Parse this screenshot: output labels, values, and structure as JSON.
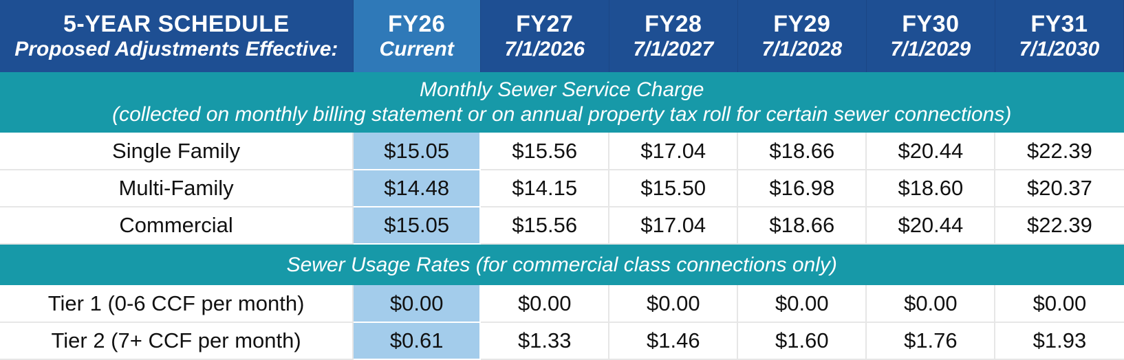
{
  "header": {
    "title": "5-YEAR SCHEDULE",
    "subtitle": "Proposed Adjustments Effective:",
    "columns": [
      {
        "year": "FY26",
        "date": "Current"
      },
      {
        "year": "FY27",
        "date": "7/1/2026"
      },
      {
        "year": "FY28",
        "date": "7/1/2027"
      },
      {
        "year": "FY29",
        "date": "7/1/2028"
      },
      {
        "year": "FY30",
        "date": "7/1/2029"
      },
      {
        "year": "FY31",
        "date": "7/1/2030"
      }
    ]
  },
  "sections": [
    {
      "title": "Monthly Sewer Service Charge",
      "note": "(collected on monthly billing statement or on annual property tax roll for certain sewer connections)",
      "rows": [
        {
          "label": "Single Family",
          "values": [
            "$15.05",
            "$15.56",
            "$17.04",
            "$18.66",
            "$20.44",
            "$22.39"
          ]
        },
        {
          "label": "Multi-Family",
          "values": [
            "$14.48",
            "$14.15",
            "$15.50",
            "$16.98",
            "$18.60",
            "$20.37"
          ]
        },
        {
          "label": "Commercial",
          "values": [
            "$15.05",
            "$15.56",
            "$17.04",
            "$18.66",
            "$20.44",
            "$22.39"
          ]
        }
      ]
    },
    {
      "title": "Sewer Usage Rates (for commercial class connections only)",
      "rows": [
        {
          "label": "Tier 1 (0-6 CCF per month)",
          "values": [
            "$0.00",
            "$0.00",
            "$0.00",
            "$0.00",
            "$0.00",
            "$0.00"
          ]
        },
        {
          "label": "Tier 2 (7+ CCF per month)",
          "values": [
            "$0.61",
            "$1.33",
            "$1.46",
            "$1.60",
            "$1.76",
            "$1.93"
          ]
        }
      ]
    }
  ],
  "colors": {
    "header_bg": "#1e4f93",
    "current_header_bg": "#2f79b8",
    "section_bg": "#1799a8",
    "current_cell_bg": "#a3cceb"
  }
}
